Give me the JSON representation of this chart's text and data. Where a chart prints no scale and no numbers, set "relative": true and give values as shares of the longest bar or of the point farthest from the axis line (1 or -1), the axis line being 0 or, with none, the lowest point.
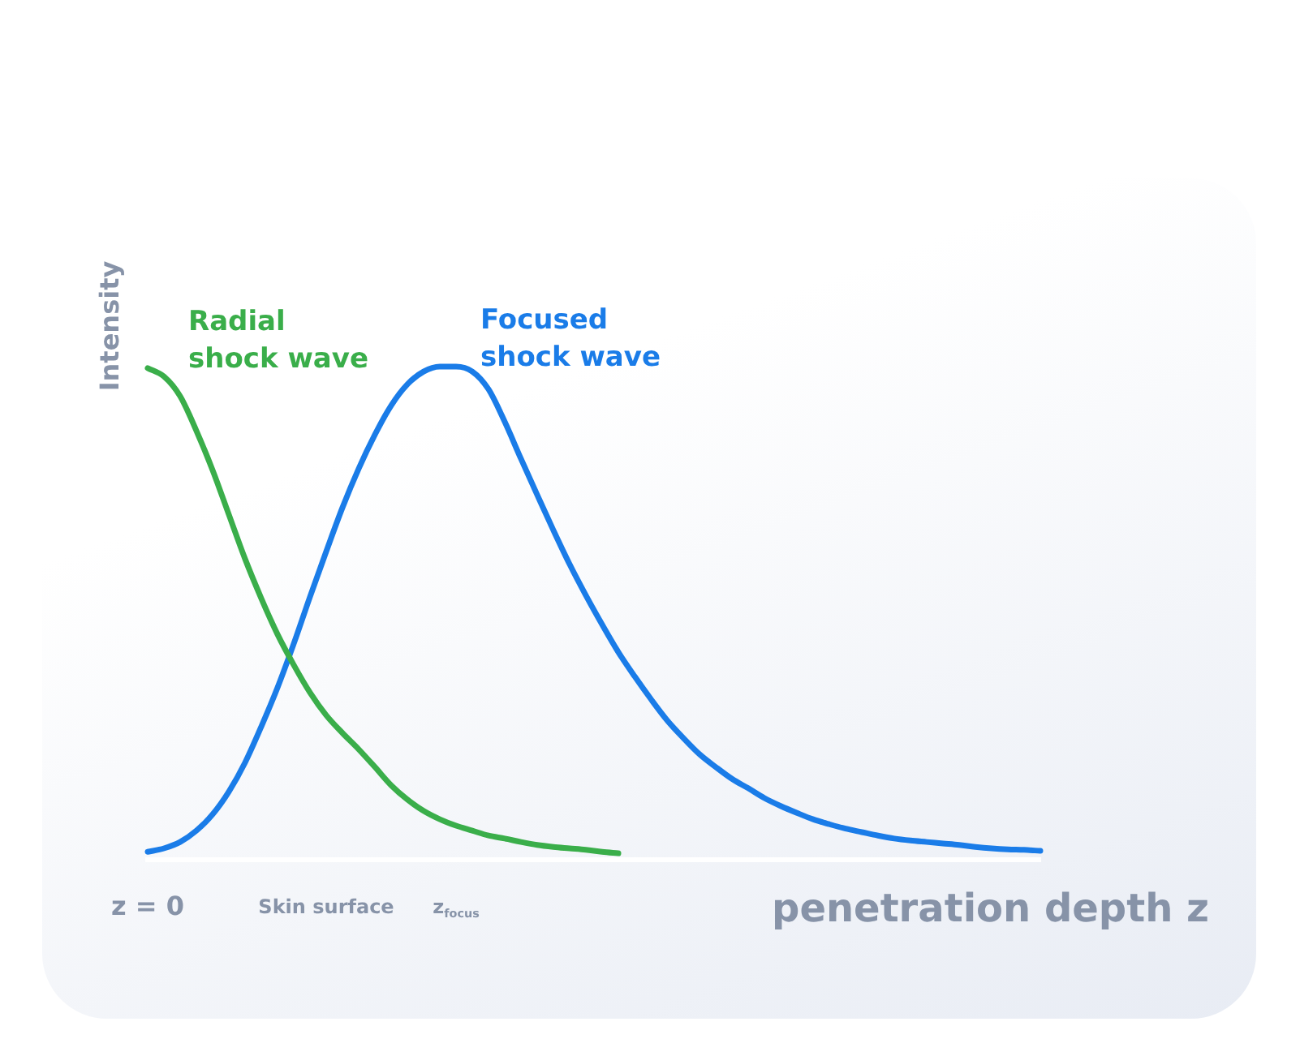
{
  "chart_data": {
    "type": "line",
    "relative": true,
    "xlabel": "penetration depth z",
    "ylabel": "Intensity",
    "categories": [
      "z = 0",
      null,
      null,
      null,
      null,
      null,
      null,
      null,
      null,
      null,
      null,
      "Skin surface",
      null,
      null,
      null,
      null,
      null,
      null,
      null,
      "z$_{focus}$",
      null,
      null,
      null,
      null,
      null,
      null,
      null,
      null,
      null,
      null,
      null,
      null,
      null,
      null,
      null,
      null,
      null,
      null,
      null,
      null,
      null,
      null,
      null,
      null,
      null,
      null,
      null,
      null,
      null,
      null,
      null,
      null,
      null,
      null,
      null,
      null
    ],
    "series": [
      {
        "name": "Radial shock wave",
        "color": "#3aae4a",
        "values": [
          0.997,
          0.98,
          0.94,
          0.87,
          0.79,
          0.7,
          0.61,
          0.53,
          0.457,
          0.395,
          0.339,
          0.293,
          0.257,
          0.224,
          0.188,
          0.151,
          0.122,
          0.099,
          0.082,
          0.069,
          0.059,
          0.049,
          0.043,
          0.036,
          0.03,
          0.026,
          0.023,
          0.02,
          0.016,
          0.013,
          null,
          null,
          null,
          null,
          null,
          null,
          null,
          null,
          null,
          null,
          null,
          null,
          null,
          null,
          null,
          null,
          null,
          null,
          null,
          null,
          null,
          null,
          null,
          null,
          null,
          null
        ]
      },
      {
        "name": "Focused shock wave",
        "color": "#1a7ce8",
        "values": [
          0.016,
          0.023,
          0.036,
          0.059,
          0.092,
          0.138,
          0.197,
          0.27,
          0.349,
          0.438,
          0.533,
          0.625,
          0.714,
          0.793,
          0.862,
          0.921,
          0.964,
          0.99,
          1.0,
          1.0,
          0.99,
          0.954,
          0.888,
          0.813,
          0.74,
          0.668,
          0.599,
          0.536,
          0.477,
          0.421,
          0.372,
          0.326,
          0.283,
          0.247,
          0.214,
          0.188,
          0.164,
          0.145,
          0.125,
          0.109,
          0.095,
          0.082,
          0.072,
          0.063,
          0.056,
          0.049,
          0.043,
          0.039,
          0.036,
          0.033,
          0.03,
          0.026,
          0.023,
          0.021,
          0.02,
          0.018
        ]
      }
    ],
    "legend": false,
    "grid": false,
    "marker": "none",
    "line_style": "solid"
  }
}
